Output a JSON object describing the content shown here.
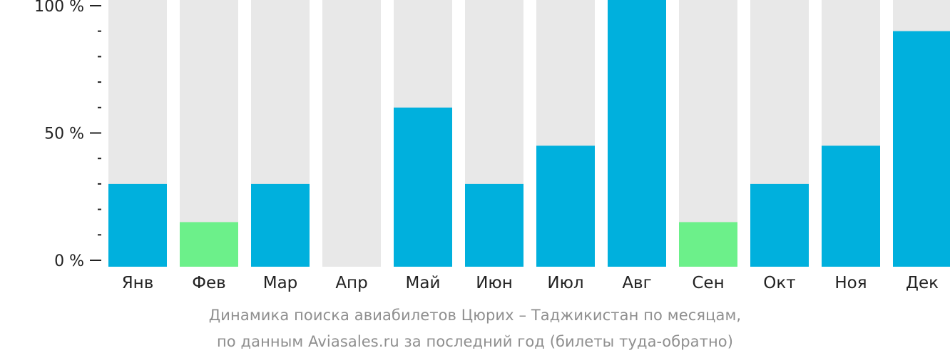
{
  "chart_data": {
    "type": "bar",
    "categories": [
      "Янв",
      "Фев",
      "Мар",
      "Апр",
      "Май",
      "Июн",
      "Июл",
      "Авг",
      "Сен",
      "Окт",
      "Ноя",
      "Дек"
    ],
    "values": [
      30,
      15,
      30,
      0,
      60,
      30,
      45,
      100,
      15,
      30,
      45,
      90
    ],
    "highlight_low": [
      false,
      true,
      false,
      false,
      false,
      false,
      false,
      false,
      true,
      false,
      false,
      false
    ],
    "ylim": [
      0,
      100
    ],
    "yticks": [
      {
        "value": 0,
        "label": "0 %"
      },
      {
        "value": 50,
        "label": "50 %"
      },
      {
        "value": 100,
        "label": "100 %"
      }
    ],
    "minor_tick_step": 10,
    "grid": false,
    "colors": {
      "bar": "#00b0dd",
      "bar_low": "#6cf08a",
      "track": "#e8e8e8",
      "axis": "#222222"
    }
  },
  "caption": {
    "line1": "Динамика поиска авиабилетов Цюрих – Таджикистан по месяцам,",
    "line2": "по данным Aviasales.ru за последний год (билеты туда-обратно)"
  }
}
